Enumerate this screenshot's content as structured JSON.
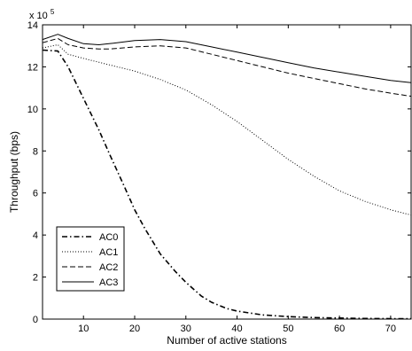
{
  "chart_data": {
    "type": "line",
    "title": "",
    "xlabel": "Number of active stations",
    "ylabel": "Throughput (bps)",
    "y_multiplier": "x 10",
    "y_multiplier_exp": "5",
    "xlim": [
      2,
      74
    ],
    "ylim": [
      0,
      14
    ],
    "x_ticks": [
      10,
      20,
      30,
      40,
      50,
      60,
      70
    ],
    "y_ticks": [
      0,
      2,
      4,
      6,
      8,
      10,
      12,
      14
    ],
    "grid": false,
    "legend_position": "bottom-left",
    "series": [
      {
        "name": "AC0",
        "style": "dashdot",
        "color": "#000000",
        "points": [
          [
            2,
            12.8
          ],
          [
            5,
            12.75
          ],
          [
            7,
            12.0
          ],
          [
            10,
            10.5
          ],
          [
            13,
            9.0
          ],
          [
            15,
            7.9
          ],
          [
            18,
            6.3
          ],
          [
            20,
            5.2
          ],
          [
            22,
            4.3
          ],
          [
            25,
            3.1
          ],
          [
            28,
            2.25
          ],
          [
            30,
            1.75
          ],
          [
            33,
            1.1
          ],
          [
            35,
            0.8
          ],
          [
            38,
            0.5
          ],
          [
            40,
            0.38
          ],
          [
            45,
            0.2
          ],
          [
            50,
            0.12
          ],
          [
            55,
            0.07
          ],
          [
            60,
            0.05
          ],
          [
            65,
            0.03
          ],
          [
            70,
            0.02
          ],
          [
            74,
            0.02
          ]
        ]
      },
      {
        "name": "AC1",
        "style": "dotted",
        "color": "#000000",
        "points": [
          [
            2,
            12.9
          ],
          [
            5,
            13.05
          ],
          [
            7,
            12.6
          ],
          [
            10,
            12.4
          ],
          [
            15,
            12.1
          ],
          [
            20,
            11.8
          ],
          [
            25,
            11.4
          ],
          [
            30,
            10.9
          ],
          [
            35,
            10.2
          ],
          [
            40,
            9.4
          ],
          [
            45,
            8.5
          ],
          [
            50,
            7.6
          ],
          [
            55,
            6.8
          ],
          [
            60,
            6.1
          ],
          [
            65,
            5.6
          ],
          [
            70,
            5.2
          ],
          [
            74,
            4.95
          ]
        ]
      },
      {
        "name": "AC2",
        "style": "dashed",
        "color": "#000000",
        "points": [
          [
            2,
            13.15
          ],
          [
            5,
            13.35
          ],
          [
            7,
            13.05
          ],
          [
            10,
            12.9
          ],
          [
            13,
            12.85
          ],
          [
            15,
            12.85
          ],
          [
            20,
            12.95
          ],
          [
            25,
            13.0
          ],
          [
            30,
            12.9
          ],
          [
            35,
            12.6
          ],
          [
            40,
            12.3
          ],
          [
            45,
            12.0
          ],
          [
            50,
            11.7
          ],
          [
            55,
            11.45
          ],
          [
            60,
            11.2
          ],
          [
            65,
            10.95
          ],
          [
            70,
            10.75
          ],
          [
            74,
            10.6
          ]
        ]
      },
      {
        "name": "AC3",
        "style": "solid",
        "color": "#000000",
        "points": [
          [
            2,
            13.3
          ],
          [
            5,
            13.55
          ],
          [
            7,
            13.35
          ],
          [
            10,
            13.1
          ],
          [
            13,
            13.05
          ],
          [
            15,
            13.1
          ],
          [
            20,
            13.25
          ],
          [
            25,
            13.3
          ],
          [
            30,
            13.2
          ],
          [
            35,
            12.95
          ],
          [
            40,
            12.7
          ],
          [
            45,
            12.45
          ],
          [
            50,
            12.2
          ],
          [
            55,
            11.95
          ],
          [
            60,
            11.75
          ],
          [
            65,
            11.55
          ],
          [
            70,
            11.35
          ],
          [
            74,
            11.25
          ]
        ]
      }
    ]
  }
}
